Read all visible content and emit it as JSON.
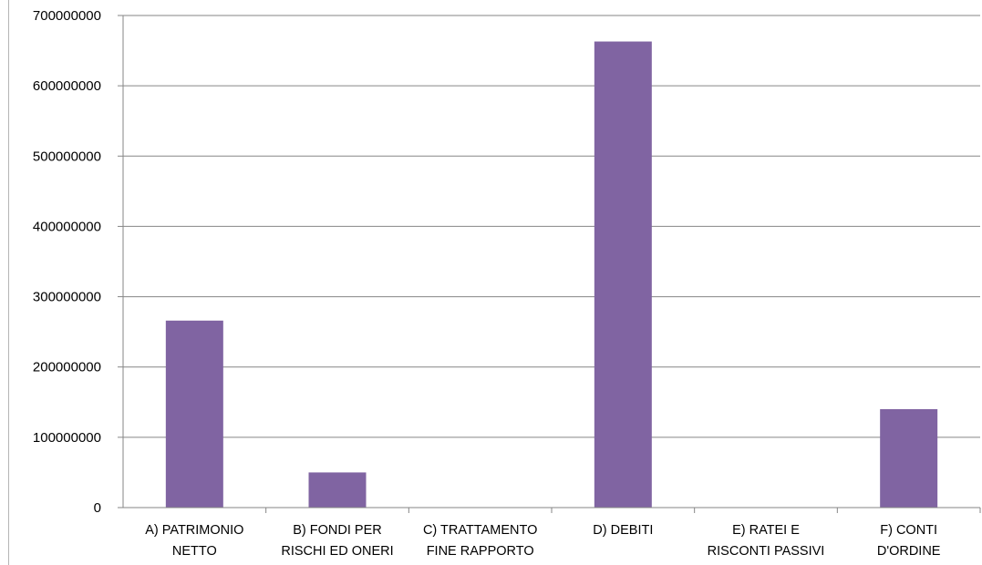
{
  "chart_data": {
    "type": "bar",
    "title": "",
    "xlabel": "",
    "ylabel": "",
    "categories": [
      [
        "A) PATRIMONIO",
        "NETTO"
      ],
      [
        "B) FONDI PER",
        "RISCHI ED ONERI"
      ],
      [
        "C) TRATTAMENTO",
        "FINE RAPPORTO"
      ],
      [
        "D) DEBITI"
      ],
      [
        "E) RATEI E",
        "RISCONTI PASSIVI"
      ],
      [
        "F) CONTI",
        "D'ORDINE"
      ]
    ],
    "values": [
      266000000,
      50000000,
      0,
      663000000,
      0,
      140000000
    ],
    "ylim": [
      0,
      700000000
    ],
    "yticks": [
      "0",
      "100000000",
      "200000000",
      "300000000",
      "400000000",
      "500000000",
      "600000000",
      "700000000"
    ],
    "ytick_values": [
      0,
      100000000,
      200000000,
      300000000,
      400000000,
      500000000,
      600000000,
      700000000
    ],
    "grid": true,
    "legend": "none",
    "bar_color": "#8064a2",
    "grid_color": "#868686"
  }
}
